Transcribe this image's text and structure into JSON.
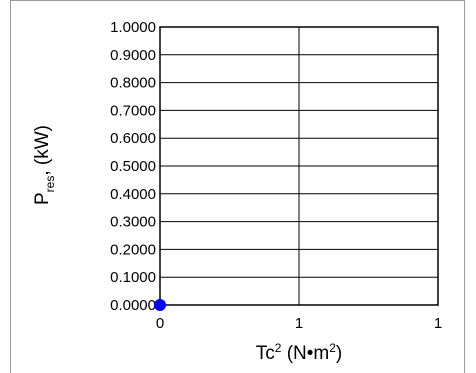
{
  "chart_data": {
    "type": "scatter",
    "xlabel": {
      "main": "Tc",
      "sup1": "2",
      "mid": " (N•m",
      "sup2": "2",
      "end": ")"
    },
    "ylabel": {
      "main": "P",
      "sub": "res",
      "end": ", (kW)"
    },
    "y_ticks": [
      "1.0000",
      "0.9000",
      "0.8000",
      "0.7000",
      "0.6000",
      "0.5000",
      "0.4000",
      "0.3000",
      "0.2000",
      "0.1000",
      "0.0000"
    ],
    "x_ticks": [
      "0",
      "1",
      "1"
    ],
    "ylim": [
      0,
      1
    ],
    "xlim": [
      0,
      1
    ],
    "grid": true,
    "series": [
      {
        "color": "#0000ff",
        "points": [
          {
            "x": 0,
            "y": 0
          }
        ]
      }
    ]
  }
}
